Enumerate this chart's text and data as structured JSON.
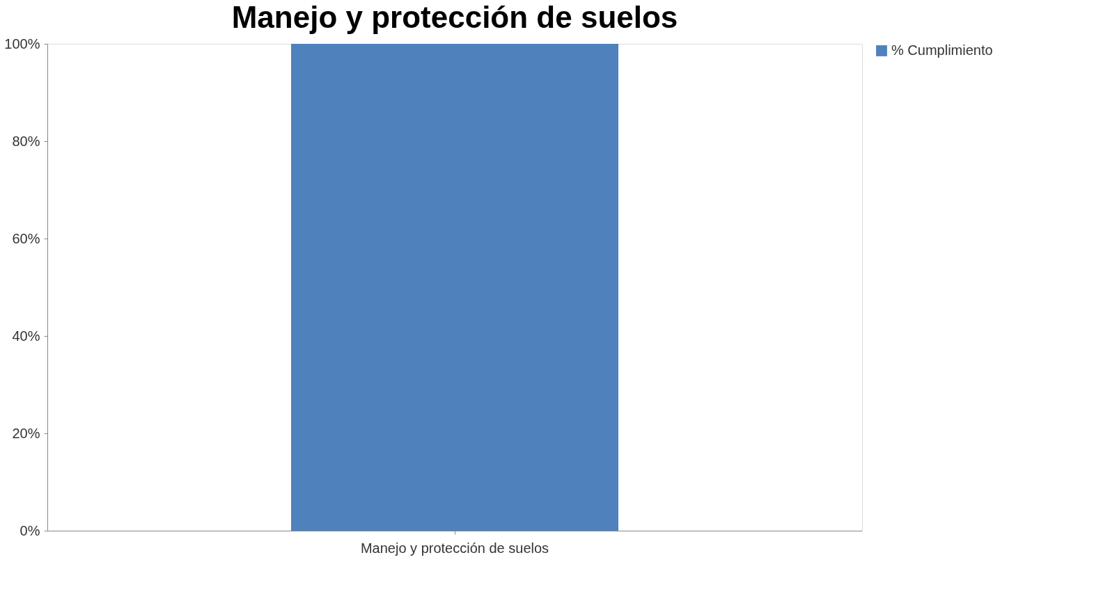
{
  "chart_data": {
    "type": "bar",
    "title": "Manejo y protección de suelos",
    "categories": [
      "Manejo y protección de suelos"
    ],
    "series": [
      {
        "name": "% Cumplimiento",
        "color": "#4f81bd",
        "values": [
          100
        ]
      }
    ],
    "ylim": [
      0,
      100
    ],
    "yticks": [
      {
        "value": 0,
        "label": "0%"
      },
      {
        "value": 20,
        "label": "20%"
      },
      {
        "value": 40,
        "label": "40%"
      },
      {
        "value": 60,
        "label": "60%"
      },
      {
        "value": 80,
        "label": "80%"
      },
      {
        "value": 100,
        "label": "100%"
      }
    ],
    "grid": false,
    "legend": "right"
  }
}
